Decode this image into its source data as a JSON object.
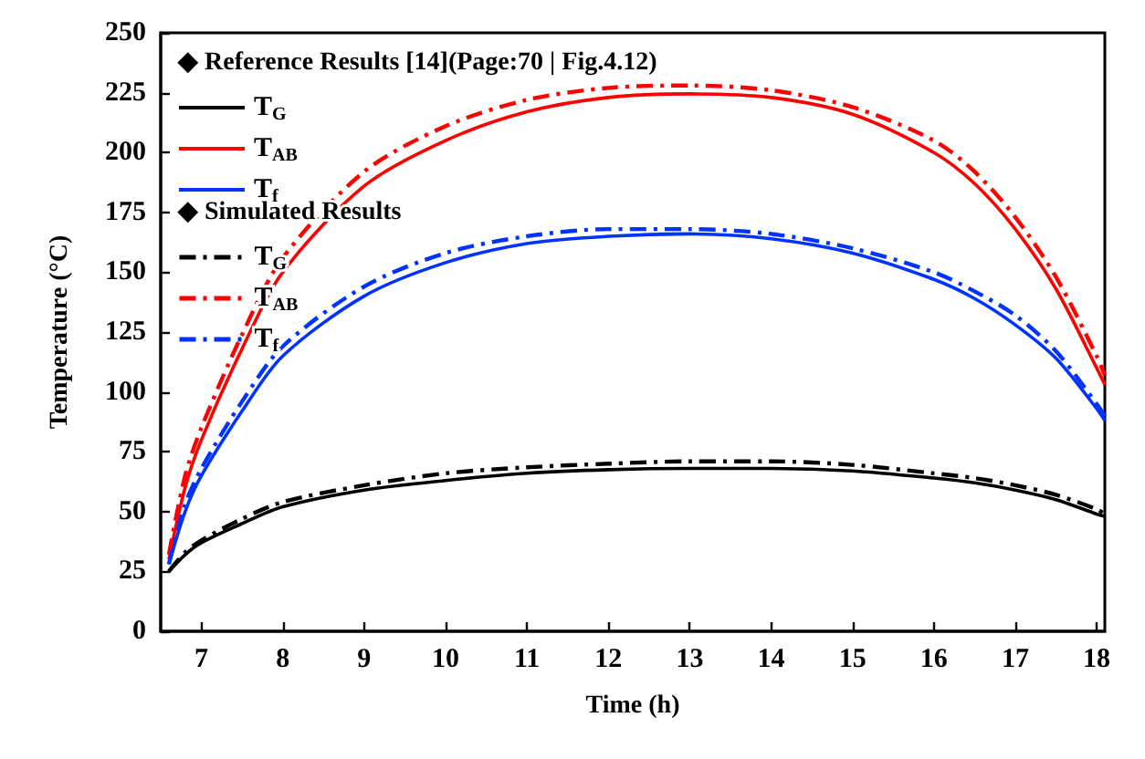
{
  "chart_data": {
    "type": "line",
    "xlabel": "Time (h)",
    "ylabel": "Temperature (°C)",
    "xlim": [
      6.5,
      18.1
    ],
    "xticks": [
      7,
      8,
      9,
      10,
      11,
      12,
      13,
      14,
      15,
      16,
      17,
      18
    ],
    "ylim": [
      0,
      250
    ],
    "yticks": [
      0,
      25,
      50,
      75,
      100,
      125,
      150,
      175,
      200,
      225,
      250
    ],
    "grid": false,
    "legend": "top left",
    "marker": "none",
    "annotations": [
      "◆ Reference Results [14](Page:70 | Fig.4.12)",
      "◆ Simulated Results"
    ],
    "x": [
      6.6,
      6.8,
      7,
      7.5,
      8,
      9,
      10,
      11,
      12,
      13,
      14,
      15,
      16,
      16.5,
      17,
      17.5,
      18,
      18.1
    ],
    "series": [
      {
        "name": "T$_{G}$",
        "color": "#000000",
        "line_style": "solid",
        "values": [
          25,
          32,
          37,
          45,
          52,
          59,
          63,
          66,
          67.5,
          68,
          68,
          67,
          64,
          62,
          59,
          55,
          49,
          48
        ]
      },
      {
        "name": "T$_{AB}$",
        "color": "#ff0000",
        "line_style": "solid",
        "values": [
          30,
          60,
          80,
          118,
          150,
          186,
          205,
          217,
          223,
          224.5,
          223,
          216,
          200,
          187,
          168,
          143,
          110,
          103
        ]
      },
      {
        "name": "T$_{f}$",
        "color": "#0033ff",
        "line_style": "solid",
        "values": [
          28,
          50,
          65,
          92,
          115,
          140,
          154,
          162,
          165,
          166,
          164,
          158,
          147,
          139,
          128,
          114,
          93,
          88
        ]
      },
      {
        "name": "T$_{G}$",
        "color": "#000000",
        "line_style": "dashdot",
        "values": [
          25,
          33,
          38,
          47,
          54,
          61,
          66,
          68.5,
          70,
          71,
          71,
          69.5,
          66,
          64,
          61,
          57,
          51,
          49
        ]
      },
      {
        "name": "T$_{AB}$",
        "color": "#ff0000",
        "line_style": "dashdot",
        "values": [
          32,
          65,
          85,
          124,
          156,
          192,
          211,
          222,
          227,
          228,
          226,
          219,
          205,
          192,
          173,
          148,
          115,
          107
        ]
      },
      {
        "name": "T$_{f}$",
        "color": "#0033ff",
        "line_style": "dashdot",
        "values": [
          28,
          53,
          68,
          96,
          119,
          144,
          158,
          165,
          168,
          168,
          166,
          160,
          150,
          142,
          132,
          117,
          95,
          90
        ]
      }
    ]
  }
}
